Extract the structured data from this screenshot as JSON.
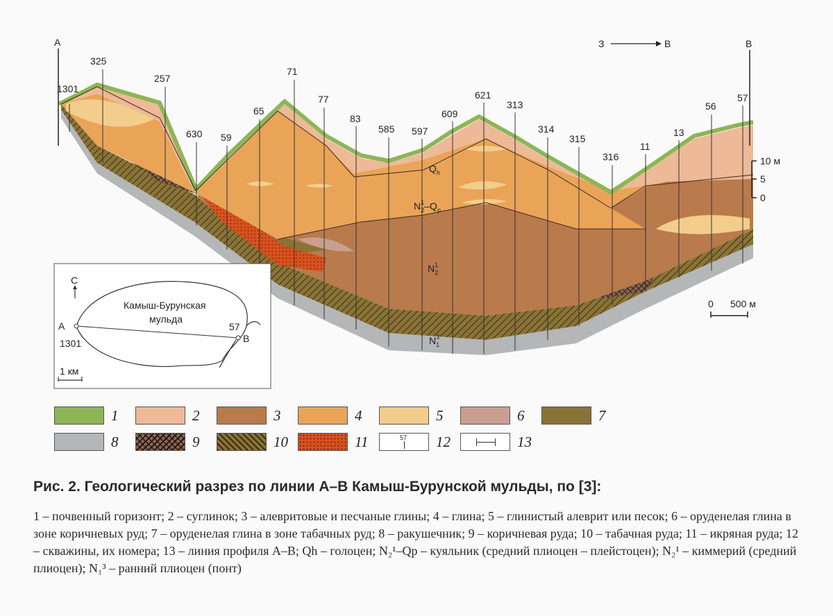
{
  "profile": {
    "point_a": "A",
    "point_b": "B",
    "direction": {
      "from": "З",
      "to": "В"
    },
    "wells": [
      "1301",
      "325",
      "257",
      "630",
      "59",
      "65",
      "71",
      "77",
      "83",
      "585",
      "597",
      "609",
      "621",
      "313",
      "314",
      "315",
      "316",
      "11",
      "13",
      "56",
      "57"
    ],
    "layer_labels": {
      "qh": {
        "main": "Q",
        "sub": "h"
      },
      "n2qp": {
        "main1": "N",
        "sub1": "2",
        "sup1": "1",
        "dash": "–Q",
        "sub2": "p"
      },
      "n21": {
        "main": "N",
        "sub": "2",
        "sup": "1"
      },
      "n13": {
        "main": "N",
        "sub": "1",
        "sup": "3"
      }
    },
    "vertical_scale": {
      "top": "10 м",
      "mid": "5",
      "bottom": "0"
    },
    "horizontal_scale": {
      "left": "0",
      "right": "500 м"
    }
  },
  "inset": {
    "north": "С",
    "name_line1": "Камыш-Бурунская",
    "name_line2": "мульда",
    "point_a": "A",
    "point_b": "B",
    "well_a": "1301",
    "well_b": "57",
    "scale": "1 км"
  },
  "legend": {
    "items": [
      {
        "num": "1",
        "color": "#8db556"
      },
      {
        "num": "2",
        "color": "#eeb997"
      },
      {
        "num": "3",
        "color": "#b97a4c"
      },
      {
        "num": "4",
        "color": "#e9a458"
      },
      {
        "num": "5",
        "color": "#f2cd8b"
      },
      {
        "num": "6",
        "color": "#c9a090"
      },
      {
        "num": "7",
        "color": "#8a7336"
      },
      {
        "num": "8",
        "color": "#b5b6b8"
      },
      {
        "num": "9",
        "color": "#6e4b3a"
      },
      {
        "num": "10",
        "color": "#5a4a22"
      },
      {
        "num": "11",
        "color": "#d8521e"
      },
      {
        "num": "12",
        "color": "#ffffff",
        "symbol": "57"
      },
      {
        "num": "13",
        "color": "#ffffff"
      }
    ]
  },
  "caption": {
    "title": "Рис. 2. Геологический разрез по линии A–B Камыш-Бурунской мульды, по [3]:",
    "body": "1 – почвенный горизонт; 2 – суглинок; 3 – алевритовые и песчаные глины; 4 – глина; 5 – глинистый алеврит или песок; 6 – оруденелая глина в зоне коричневых руд; 7 – оруденелая глина в зоне табачных руд; 8 – ракушечник; 9 – коричневая руда; 10 – табачная руда; 11 – икряная руда; 12 – скважины, их номера; 13 – линия профиля A–B; Qh – голоцен; N₂¹–Qp – куяльник (средний плиоцен – плейстоцен); N₂¹ – киммерий (средний плиоцен); N₁³ – ранний плиоцен (понт)"
  }
}
